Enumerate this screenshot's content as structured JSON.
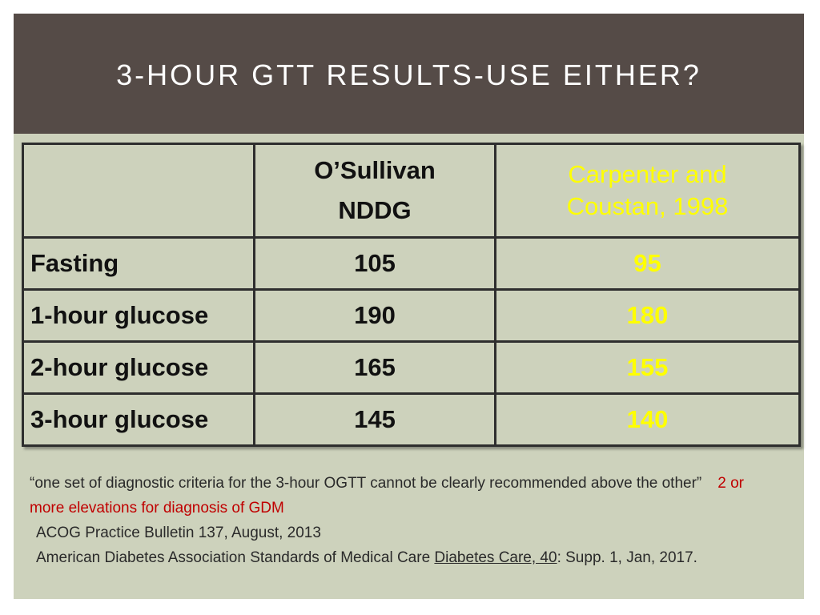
{
  "header": {
    "title": "3-HOUR GTT RESULTS-USE EITHER?"
  },
  "table": {
    "columns": [
      {
        "lines": [
          "O’Sullivan",
          "NDDG"
        ]
      },
      {
        "lines": [
          "Carpenter and",
          "Coustan, 1998"
        ]
      }
    ],
    "rows": [
      [
        "Fasting",
        "105",
        "95"
      ],
      [
        "1-hour glucose",
        "190",
        "180"
      ],
      [
        "2-hour glucose",
        "165",
        "155"
      ],
      [
        "3-hour glucose",
        "145",
        "140"
      ]
    ]
  },
  "notes": {
    "quote": "“one set of diagnostic criteria for the 3-hour OGTT cannot be clearly recommended above the other”",
    "emphasis": "2 or more elevations for diagnosis of GDM",
    "source_1": "ACOG Practice Bulletin 137, August, 2013",
    "source_2": {
      "before": "American Diabetes Association Standards of Medical Care",
      "journal": "Diabetes Care, 40",
      "after": ": Supp. 1, Jan, 2017."
    }
  }
}
